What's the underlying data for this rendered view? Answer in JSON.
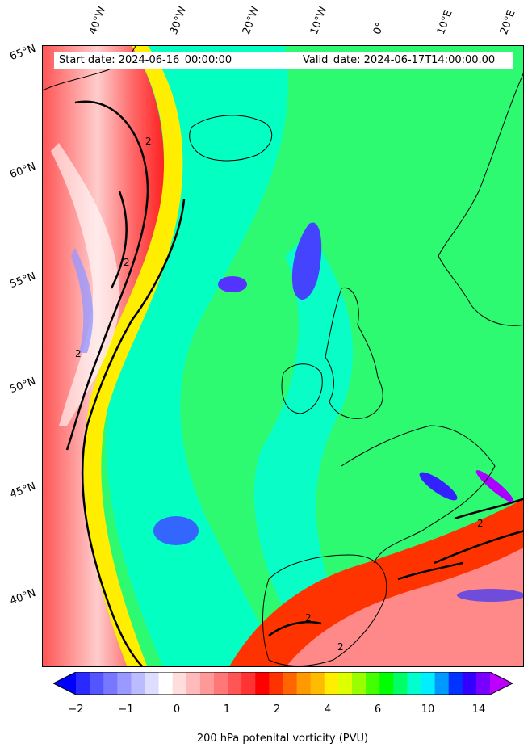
{
  "header": {
    "start_date": "Start date: 2024-06-16_00:00:00",
    "valid_date": "Valid_date: 2024-06-17T14:00:00.00"
  },
  "map": {
    "lon_labels": [
      "40°W",
      "30°W",
      "20°W",
      "10°W",
      "0°",
      "10°E",
      "20°E"
    ],
    "lat_labels": [
      "65°N",
      "60°N",
      "55°N",
      "50°N",
      "45°N",
      "40°N"
    ],
    "contour_label": "2",
    "regions": [
      "iceland",
      "ireland",
      "great-britain",
      "scandinavia",
      "iberia",
      "france",
      "greenland"
    ]
  },
  "colorbar": {
    "ticks": [
      "−2",
      "−1",
      "0",
      "1",
      "2",
      "4",
      "6",
      "10",
      "14"
    ],
    "label": "200 hPa potenital vorticity (PVU)",
    "colors": [
      "#0000ff",
      "#2a2aff",
      "#5555ff",
      "#7777ff",
      "#9999ff",
      "#bbbbff",
      "#ddddff",
      "#ffffff",
      "#ffdddd",
      "#ffbbbb",
      "#ff9999",
      "#ff7777",
      "#ff5555",
      "#ff3333",
      "#ff0000",
      "#ff3300",
      "#ff6600",
      "#ff9900",
      "#ffbb00",
      "#ffee00",
      "#ddff00",
      "#99ff00",
      "#44ff00",
      "#00ff00",
      "#00ff66",
      "#00ffcc",
      "#00eeff",
      "#0099ff",
      "#0033ff",
      "#3300ff",
      "#7700ff",
      "#bb00ff"
    ]
  }
}
